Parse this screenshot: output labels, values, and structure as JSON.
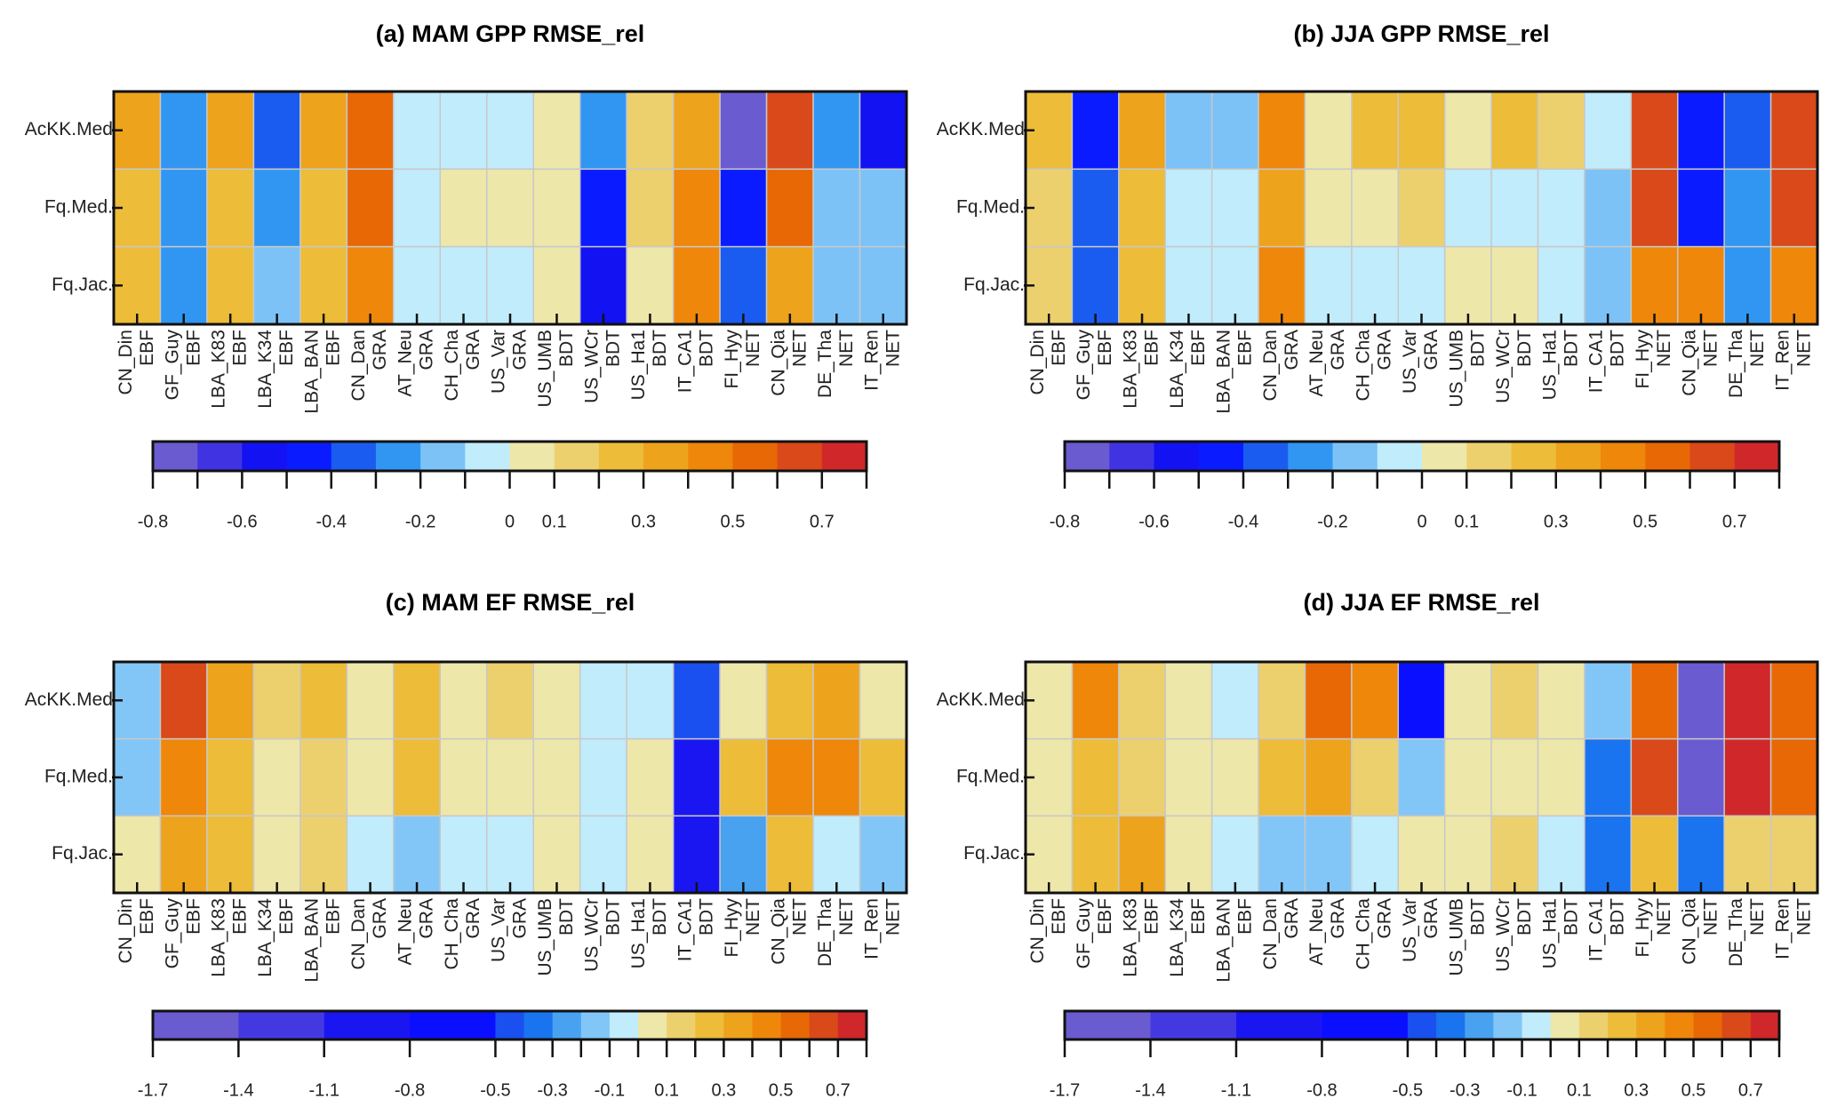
{
  "chart_data": [
    {
      "type": "heatmap",
      "title": "(a) MAM GPP RMSE_rel",
      "colorbar": "gpp",
      "rows": [
        "AcKK.Med",
        "Fq.Med.",
        "Fq.Jac."
      ],
      "columns": [
        {
          "site": "CN_Din",
          "pft": "EBF"
        },
        {
          "site": "GF_Guy",
          "pft": "EBF"
        },
        {
          "site": "LBA_K83",
          "pft": "EBF"
        },
        {
          "site": "LBA_K34",
          "pft": "EBF"
        },
        {
          "site": "LBA_BAN",
          "pft": "EBF"
        },
        {
          "site": "CN_Dan",
          "pft": "GRA"
        },
        {
          "site": "AT_Neu",
          "pft": "GRA"
        },
        {
          "site": "CH_Cha",
          "pft": "GRA"
        },
        {
          "site": "US_Var",
          "pft": "GRA"
        },
        {
          "site": "US_UMB",
          "pft": "BDT"
        },
        {
          "site": "US_WCr",
          "pft": "BDT"
        },
        {
          "site": "US_Ha1",
          "pft": "BDT"
        },
        {
          "site": "IT_CA1",
          "pft": "BDT"
        },
        {
          "site": "FI_Hyy",
          "pft": "NET"
        },
        {
          "site": "CN_Qia",
          "pft": "NET"
        },
        {
          "site": "DE_Tha",
          "pft": "NET"
        },
        {
          "site": "IT_Ren",
          "pft": "NET"
        }
      ],
      "values": [
        [
          0.35,
          -0.25,
          0.35,
          -0.35,
          0.35,
          0.55,
          -0.05,
          -0.05,
          -0.05,
          0.05,
          -0.25,
          0.15,
          0.35,
          -0.75,
          0.65,
          -0.25,
          -0.55
        ],
        [
          0.25,
          -0.25,
          0.25,
          -0.25,
          0.25,
          0.55,
          -0.05,
          0.05,
          0.05,
          0.05,
          -0.45,
          0.15,
          0.45,
          -0.45,
          0.55,
          -0.15,
          -0.15
        ],
        [
          0.25,
          -0.25,
          0.25,
          -0.15,
          0.25,
          0.45,
          -0.05,
          -0.05,
          -0.05,
          0.05,
          -0.55,
          0.05,
          0.45,
          -0.35,
          0.35,
          -0.15,
          -0.15
        ]
      ]
    },
    {
      "type": "heatmap",
      "title": "(b) JJA GPP RMSE_rel",
      "colorbar": "gpp",
      "rows": [
        "AcKK.Med",
        "Fq.Med.",
        "Fq.Jac."
      ],
      "columns": [
        {
          "site": "CN_Din",
          "pft": "EBF"
        },
        {
          "site": "GF_Guy",
          "pft": "EBF"
        },
        {
          "site": "LBA_K83",
          "pft": "EBF"
        },
        {
          "site": "LBA_K34",
          "pft": "EBF"
        },
        {
          "site": "LBA_BAN",
          "pft": "EBF"
        },
        {
          "site": "CN_Dan",
          "pft": "GRA"
        },
        {
          "site": "AT_Neu",
          "pft": "GRA"
        },
        {
          "site": "CH_Cha",
          "pft": "GRA"
        },
        {
          "site": "US_Var",
          "pft": "GRA"
        },
        {
          "site": "US_UMB",
          "pft": "BDT"
        },
        {
          "site": "US_WCr",
          "pft": "BDT"
        },
        {
          "site": "US_Ha1",
          "pft": "BDT"
        },
        {
          "site": "IT_CA1",
          "pft": "BDT"
        },
        {
          "site": "FI_Hyy",
          "pft": "NET"
        },
        {
          "site": "CN_Qia",
          "pft": "NET"
        },
        {
          "site": "DE_Tha",
          "pft": "NET"
        },
        {
          "site": "IT_Ren",
          "pft": "NET"
        }
      ],
      "values": [
        [
          0.25,
          -0.45,
          0.35,
          -0.15,
          -0.15,
          0.45,
          0.05,
          0.25,
          0.25,
          0.05,
          0.25,
          0.15,
          -0.05,
          0.65,
          -0.45,
          -0.35,
          0.65
        ],
        [
          0.15,
          -0.35,
          0.25,
          -0.05,
          -0.05,
          0.35,
          0.05,
          0.05,
          0.15,
          -0.05,
          -0.05,
          -0.05,
          -0.15,
          0.65,
          -0.45,
          -0.25,
          0.65
        ],
        [
          0.15,
          -0.35,
          0.25,
          -0.05,
          -0.05,
          0.45,
          -0.05,
          -0.05,
          -0.05,
          0.05,
          0.05,
          -0.05,
          -0.15,
          0.45,
          0.45,
          -0.25,
          0.45
        ]
      ]
    },
    {
      "type": "heatmap",
      "title": "(c) MAM EF RMSE_rel",
      "colorbar": "ef",
      "rows": [
        "AcKK.Med",
        "Fq.Med.",
        "Fq.Jac."
      ],
      "columns": [
        {
          "site": "CN_Din",
          "pft": "EBF"
        },
        {
          "site": "GF_Guy",
          "pft": "EBF"
        },
        {
          "site": "LBA_K83",
          "pft": "EBF"
        },
        {
          "site": "LBA_K34",
          "pft": "EBF"
        },
        {
          "site": "LBA_BAN",
          "pft": "EBF"
        },
        {
          "site": "CN_Dan",
          "pft": "GRA"
        },
        {
          "site": "AT_Neu",
          "pft": "GRA"
        },
        {
          "site": "CH_Cha",
          "pft": "GRA"
        },
        {
          "site": "US_Var",
          "pft": "GRA"
        },
        {
          "site": "US_UMB",
          "pft": "BDT"
        },
        {
          "site": "US_WCr",
          "pft": "BDT"
        },
        {
          "site": "US_Ha1",
          "pft": "BDT"
        },
        {
          "site": "IT_CA1",
          "pft": "BDT"
        },
        {
          "site": "FI_Hyy",
          "pft": "NET"
        },
        {
          "site": "CN_Qia",
          "pft": "NET"
        },
        {
          "site": "DE_Tha",
          "pft": "NET"
        },
        {
          "site": "IT_Ren",
          "pft": "NET"
        }
      ],
      "values": [
        [
          -0.15,
          0.65,
          0.35,
          0.15,
          0.25,
          0.05,
          0.25,
          0.05,
          0.15,
          0.05,
          -0.05,
          -0.05,
          -0.45,
          0.05,
          0.25,
          0.35,
          0.05
        ],
        [
          -0.15,
          0.45,
          0.25,
          0.05,
          0.15,
          0.05,
          0.25,
          0.05,
          0.05,
          0.05,
          -0.05,
          0.05,
          -0.95,
          0.25,
          0.45,
          0.45,
          0.25
        ],
        [
          0.05,
          0.35,
          0.25,
          0.05,
          0.15,
          -0.05,
          -0.15,
          -0.05,
          -0.05,
          0.05,
          -0.05,
          0.05,
          -0.95,
          -0.25,
          0.25,
          -0.05,
          -0.15
        ]
      ]
    },
    {
      "type": "heatmap",
      "title": "(d) JJA EF RMSE_rel",
      "colorbar": "ef",
      "rows": [
        "AcKK.Med",
        "Fq.Med.",
        "Fq.Jac."
      ],
      "columns": [
        {
          "site": "CN_Din",
          "pft": "EBF"
        },
        {
          "site": "GF_Guy",
          "pft": "EBF"
        },
        {
          "site": "LBA_K83",
          "pft": "EBF"
        },
        {
          "site": "LBA_K34",
          "pft": "EBF"
        },
        {
          "site": "LBA_BAN",
          "pft": "EBF"
        },
        {
          "site": "CN_Dan",
          "pft": "GRA"
        },
        {
          "site": "AT_Neu",
          "pft": "GRA"
        },
        {
          "site": "CH_Cha",
          "pft": "GRA"
        },
        {
          "site": "US_Var",
          "pft": "GRA"
        },
        {
          "site": "US_UMB",
          "pft": "BDT"
        },
        {
          "site": "US_WCr",
          "pft": "BDT"
        },
        {
          "site": "US_Ha1",
          "pft": "BDT"
        },
        {
          "site": "IT_CA1",
          "pft": "BDT"
        },
        {
          "site": "FI_Hyy",
          "pft": "NET"
        },
        {
          "site": "CN_Qia",
          "pft": "NET"
        },
        {
          "site": "DE_Tha",
          "pft": "NET"
        },
        {
          "site": "IT_Ren",
          "pft": "NET"
        }
      ],
      "values": [
        [
          0.05,
          0.45,
          0.15,
          0.05,
          -0.05,
          0.15,
          0.55,
          0.45,
          -0.65,
          0.05,
          0.15,
          0.05,
          -0.15,
          0.55,
          -1.55,
          0.75,
          0.55
        ],
        [
          0.05,
          0.25,
          0.15,
          0.05,
          0.05,
          0.25,
          0.35,
          0.15,
          -0.15,
          0.05,
          0.05,
          0.05,
          -0.35,
          0.65,
          -1.55,
          0.75,
          0.55
        ],
        [
          0.05,
          0.25,
          0.35,
          0.05,
          -0.05,
          -0.15,
          -0.15,
          -0.05,
          0.05,
          0.05,
          0.15,
          -0.05,
          -0.35,
          0.25,
          -0.35,
          0.15,
          0.15
        ]
      ]
    }
  ],
  "colorbars": {
    "gpp": {
      "breaks": [
        -0.8,
        -0.7,
        -0.6,
        -0.5,
        -0.4,
        -0.3,
        -0.2,
        -0.1,
        0,
        0.1,
        0.2,
        0.3,
        0.4,
        0.5,
        0.6,
        0.7,
        0.8
      ],
      "colors": [
        "#6b5bd0",
        "#4034e2",
        "#1212f2",
        "#0a1cff",
        "#1a5cf0",
        "#3196f2",
        "#7cc2f6",
        "#c0ecfc",
        "#eee7aa",
        "#edd06e",
        "#edbc38",
        "#eea31c",
        "#ee870a",
        "#e86806",
        "#d9491a",
        "#d0282a"
      ],
      "labels": [
        {
          "value": -0.8,
          "text": "-0.8"
        },
        {
          "value": -0.6,
          "text": "-0.6"
        },
        {
          "value": -0.4,
          "text": "-0.4"
        },
        {
          "value": -0.2,
          "text": "-0.2"
        },
        {
          "value": 0,
          "text": "0"
        },
        {
          "value": 0.1,
          "text": "0.1"
        },
        {
          "value": 0.3,
          "text": "0.3"
        },
        {
          "value": 0.5,
          "text": "0.5"
        },
        {
          "value": 0.7,
          "text": "0.7"
        }
      ]
    },
    "ef": {
      "breaks": [
        -1.7,
        -1.4,
        -1.1,
        -0.8,
        -0.5,
        -0.4,
        -0.3,
        -0.2,
        -0.1,
        0,
        0.1,
        0.2,
        0.3,
        0.4,
        0.5,
        0.6,
        0.7,
        0.8
      ],
      "colors": [
        "#6b5bd0",
        "#4439e0",
        "#1a16f2",
        "#0a10ff",
        "#1a50f0",
        "#1a74f0",
        "#48a2f0",
        "#82c6f7",
        "#c0ecfc",
        "#eee7aa",
        "#edd06e",
        "#edbc38",
        "#eea31c",
        "#ee870a",
        "#e86806",
        "#d9491a",
        "#d0282a"
      ],
      "labels": [
        {
          "value": -1.7,
          "text": "-1.7"
        },
        {
          "value": -1.4,
          "text": "-1.4"
        },
        {
          "value": -1.1,
          "text": "-1.1"
        },
        {
          "value": -0.8,
          "text": "-0.8"
        },
        {
          "value": -0.5,
          "text": "-0.5"
        },
        {
          "value": -0.3,
          "text": "-0.3"
        },
        {
          "value": -0.1,
          "text": "-0.1"
        },
        {
          "value": 0.1,
          "text": "0.1"
        },
        {
          "value": 0.3,
          "text": "0.3"
        },
        {
          "value": 0.5,
          "text": "0.5"
        },
        {
          "value": 0.7,
          "text": "0.7"
        }
      ]
    }
  }
}
